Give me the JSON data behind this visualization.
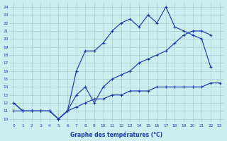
{
  "line1_x": [
    0,
    1,
    2,
    3,
    4,
    5,
    6,
    7,
    8,
    9,
    10,
    11,
    12,
    13,
    14,
    15,
    16,
    17,
    18,
    19,
    20,
    21,
    22
  ],
  "line1_y": [
    12,
    11,
    11,
    11,
    11,
    10,
    11,
    16,
    18.5,
    18.5,
    19.5,
    21,
    22,
    22.5,
    21.5,
    23,
    22,
    24,
    21.5,
    21,
    20.5,
    20,
    16.5
  ],
  "line2_x": [
    0,
    1,
    2,
    3,
    4,
    5,
    6,
    7,
    8,
    9,
    10,
    11,
    12,
    13,
    14,
    15,
    16,
    17,
    18,
    19,
    20,
    21,
    22
  ],
  "line2_y": [
    12,
    11,
    11,
    11,
    11,
    10,
    11,
    13,
    14,
    12,
    14,
    15,
    15.5,
    16,
    17,
    17.5,
    18,
    18.5,
    19.5,
    20.5,
    21,
    21,
    20.5
  ],
  "line3_x": [
    0,
    1,
    2,
    3,
    4,
    5,
    6,
    7,
    8,
    9,
    10,
    11,
    12,
    13,
    14,
    15,
    16,
    17,
    18,
    19,
    20,
    21,
    22,
    23
  ],
  "line3_y": [
    11,
    11,
    11,
    11,
    11,
    10,
    11,
    11.5,
    12,
    12.5,
    12.5,
    13,
    13,
    13.5,
    13.5,
    13.5,
    14,
    14,
    14,
    14,
    14,
    14,
    14.5,
    14.5
  ],
  "line_color": "#1a3ab5",
  "bg_color": "#cceeee",
  "grid_color": "#aacece",
  "xlabel": "Graphe des températures (°C)",
  "xlim": [
    -0.5,
    23.5
  ],
  "ylim": [
    9.5,
    24.5
  ],
  "yticks": [
    10,
    11,
    12,
    13,
    14,
    15,
    16,
    17,
    18,
    19,
    20,
    21,
    22,
    23,
    24
  ],
  "xticks": [
    0,
    1,
    2,
    3,
    4,
    5,
    6,
    7,
    8,
    9,
    10,
    11,
    12,
    13,
    14,
    15,
    16,
    17,
    18,
    19,
    20,
    21,
    22,
    23
  ],
  "marker": "+"
}
